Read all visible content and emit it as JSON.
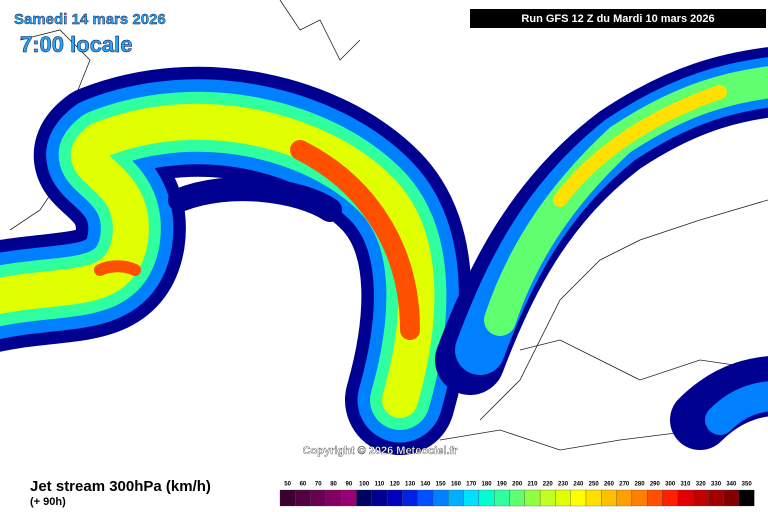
{
  "header": {
    "date": "Samedi 14 mars 2026",
    "time": "7:00 locale",
    "run": "Run GFS 12 Z du Mardi 10 mars 2026"
  },
  "map": {
    "copyright": "Copyright © 2026 Meteociel.fr"
  },
  "footer": {
    "title": "Jet stream 300hPa (km/h)",
    "lead": "(+ 90h)"
  },
  "legend": {
    "values": [
      50,
      60,
      70,
      80,
      90,
      100,
      110,
      120,
      130,
      140,
      150,
      160,
      170,
      180,
      190,
      200,
      210,
      220,
      230,
      240,
      250,
      260,
      270,
      280,
      290,
      300,
      310,
      320,
      330,
      340,
      350
    ],
    "colors": [
      "#3a0030",
      "#520042",
      "#6a0052",
      "#820062",
      "#960074",
      "#000060",
      "#000090",
      "#0000c0",
      "#0022e0",
      "#0050ff",
      "#0080ff",
      "#00b0ff",
      "#00e0ff",
      "#00ffd0",
      "#30ffa0",
      "#60ff70",
      "#90ff40",
      "#c0ff20",
      "#e0ff00",
      "#ffff00",
      "#ffe000",
      "#ffc000",
      "#ffa000",
      "#ff8000",
      "#ff5000",
      "#ff2000",
      "#e00000",
      "#c00000",
      "#a00000",
      "#800000",
      "#000000"
    ]
  }
}
